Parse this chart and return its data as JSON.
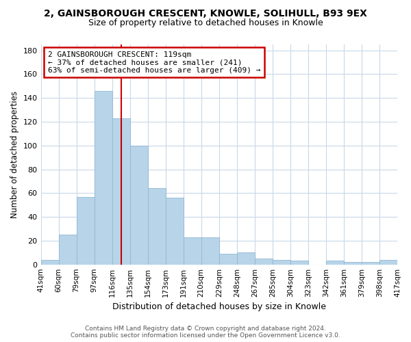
{
  "title": "2, GAINSBOROUGH CRESCENT, KNOWLE, SOLIHULL, B93 9EX",
  "subtitle": "Size of property relative to detached houses in Knowle",
  "xlabel": "Distribution of detached houses by size in Knowle",
  "ylabel": "Number of detached properties",
  "bar_color": "#b8d4e8",
  "bar_edge_color": "#90b8d4",
  "vline_color": "#cc0000",
  "bins": [
    "41sqm",
    "60sqm",
    "79sqm",
    "97sqm",
    "116sqm",
    "135sqm",
    "154sqm",
    "173sqm",
    "191sqm",
    "210sqm",
    "229sqm",
    "248sqm",
    "267sqm",
    "285sqm",
    "304sqm",
    "323sqm",
    "342sqm",
    "361sqm",
    "379sqm",
    "398sqm",
    "417sqm"
  ],
  "values": [
    4,
    25,
    57,
    146,
    123,
    100,
    64,
    56,
    23,
    23,
    9,
    10,
    5,
    4,
    3,
    0,
    3,
    2,
    2,
    4
  ],
  "ylim": [
    0,
    185
  ],
  "yticks": [
    0,
    20,
    40,
    60,
    80,
    100,
    120,
    140,
    160,
    180
  ],
  "vline_position": 4.5,
  "annotation_title": "2 GAINSBOROUGH CRESCENT: 119sqm",
  "annotation_line1": "← 37% of detached houses are smaller (241)",
  "annotation_line2": "63% of semi-detached houses are larger (409) →",
  "annotation_box_color": "#ffffff",
  "annotation_box_edge": "#cc0000",
  "footer_line1": "Contains HM Land Registry data © Crown copyright and database right 2024.",
  "footer_line2": "Contains public sector information licensed under the Open Government Licence v3.0.",
  "background_color": "#ffffff",
  "grid_color": "#c8d8e8"
}
